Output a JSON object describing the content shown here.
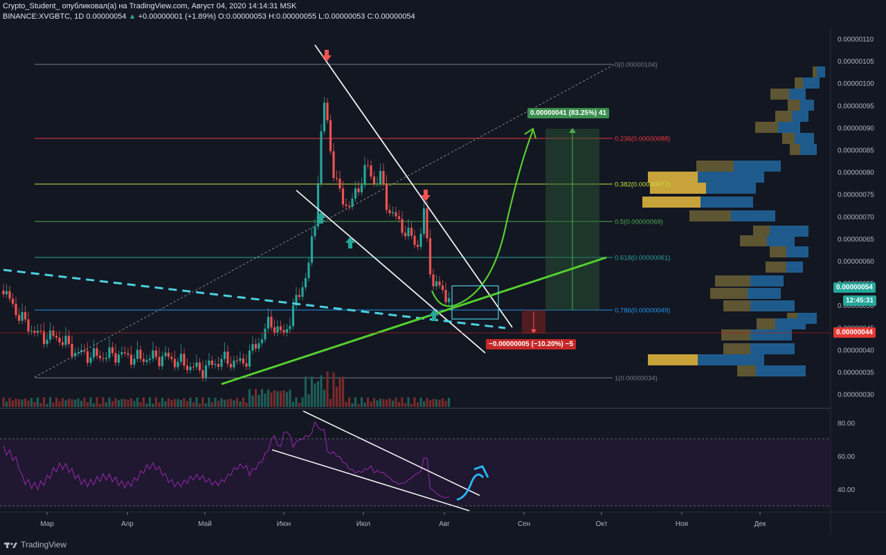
{
  "header": {
    "line1": "Crypto_Student_ опубликовал(а) на TradingView.com, Август 04, 2020 14:14:31 MSK",
    "symbol": "BINANCE:XVGBTC, 1D",
    "last": "0.00000054",
    "change": "+0.00000001 (+1.89%)",
    "ohlc": "O:0.00000053 H:0.00000055 L:0.00000053 C:0.00000054"
  },
  "price_axis": [
    "0.00000110",
    "0.00000105",
    "0.00000100",
    "0.00000095",
    "0.00000090",
    "0.00000085",
    "0.00000080",
    "0.00000075",
    "0.00000070",
    "0.00000065",
    "0.00000060",
    "0.00000055",
    "0.00000050",
    "0.00000045",
    "0.00000040",
    "0.00000035",
    "0.00000030"
  ],
  "price_tags": {
    "current": "0.00000054",
    "timer": "12:45:31",
    "stop": "0.00000044"
  },
  "rsi_axis": [
    "80.00",
    "60.00",
    "40.00"
  ],
  "time_axis": [
    "Мар",
    "Апр",
    "Май",
    "Июн",
    "Июл",
    "Авг",
    "Сен",
    "Окт",
    "Ноя",
    "Дек"
  ],
  "fib_labels": [
    "0(0.00000104)",
    "0.236(0.00000088)",
    "0.382(0.00000077)",
    "0.5(0.00000069)",
    "0.618(0.00000061)",
    "0.786(0.00000049)",
    "1(0.00000034)"
  ],
  "fib_colors": [
    "#787b86",
    "#f23645",
    "#c6e03c",
    "#4caf50",
    "#26a69a",
    "#2196f3",
    "#787b86"
  ],
  "target_label": "0.00000041 (83.25%) 41",
  "stop_label": "−0.00000005 (−10.20%) −5",
  "brand": "TradingView",
  "colors": {
    "up": "#26a69a",
    "down": "#ef5350",
    "profit": "#3b8f4e",
    "loss": "#c62828",
    "trend": "#55d02e"
  }
}
